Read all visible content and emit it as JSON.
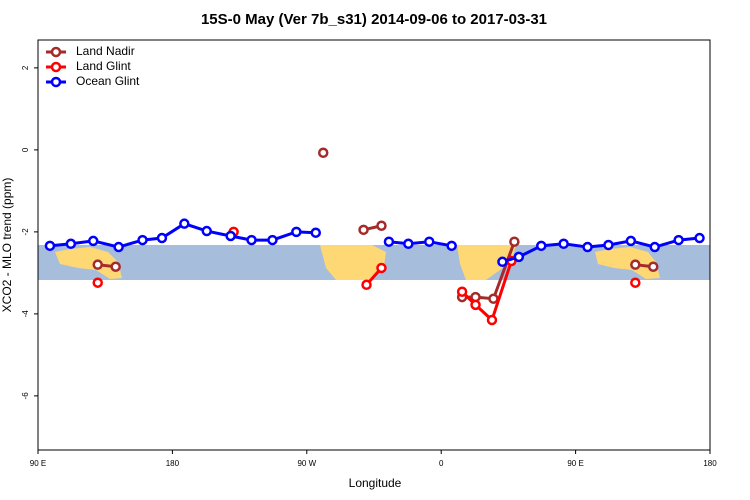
{
  "chart_data": {
    "type": "line",
    "title": "15S-0 May (Ver 7b_s31)   2014-09-06 to 2017-03-31",
    "x_label": "Longitude",
    "y_label": "XCO2 - MLO trend (ppm)",
    "xlim": [
      90,
      540
    ],
    "xticks": [
      {
        "value": 90,
        "label": "90 E"
      },
      180,
      {
        "value": 270,
        "label": "90 W"
      },
      {
        "value": 360,
        "label": "0"
      },
      {
        "value": 450,
        "label": "90 E"
      },
      {
        "value": 540,
        "label": "180"
      }
    ],
    "ylim": [
      -7.32,
      2.68
    ],
    "yticks": [
      2,
      0,
      -2,
      -4,
      -6
    ],
    "legend": "top-left",
    "series": [
      {
        "name": "Land Nadir",
        "color": "#a52a2a",
        "x": [
          130,
          142,
          null,
          281,
          null,
          308,
          320,
          null,
          374,
          383,
          395,
          409,
          null,
          490,
          502
        ],
        "values": [
          -2.8,
          -2.85,
          null,
          -0.07,
          null,
          -1.95,
          -1.85,
          null,
          -3.59,
          -3.59,
          -3.63,
          -2.24,
          null,
          -2.8,
          -2.85
        ]
      },
      {
        "name": "Land Glint",
        "color": "#ff0000",
        "x": [
          130,
          null,
          221,
          null,
          310,
          320,
          null,
          374,
          383,
          394,
          407,
          null,
          490
        ],
        "values": [
          -3.24,
          null,
          -2.0,
          null,
          -3.29,
          -2.88,
          null,
          -3.46,
          -3.78,
          -4.15,
          -2.71,
          null,
          -3.24
        ]
      },
      {
        "name": "Ocean Glint",
        "color": "#0000ff",
        "x": [
          98,
          112,
          127,
          144,
          160,
          173,
          188,
          203,
          219,
          233,
          247,
          263,
          276,
          null,
          325,
          338,
          352,
          367,
          null,
          401,
          412,
          427,
          442,
          458,
          472,
          487,
          503,
          519,
          533
        ],
        "values": [
          -2.34,
          -2.29,
          -2.22,
          -2.37,
          -2.2,
          -2.15,
          -1.8,
          -1.98,
          -2.1,
          -2.2,
          -2.2,
          -2.0,
          -2.02,
          null,
          -2.24,
          -2.29,
          -2.24,
          -2.34,
          null,
          -2.73,
          -2.61,
          -2.34,
          -2.29,
          -2.37,
          -2.32,
          -2.22,
          -2.37,
          -2.2,
          -2.15
        ]
      }
    ]
  }
}
